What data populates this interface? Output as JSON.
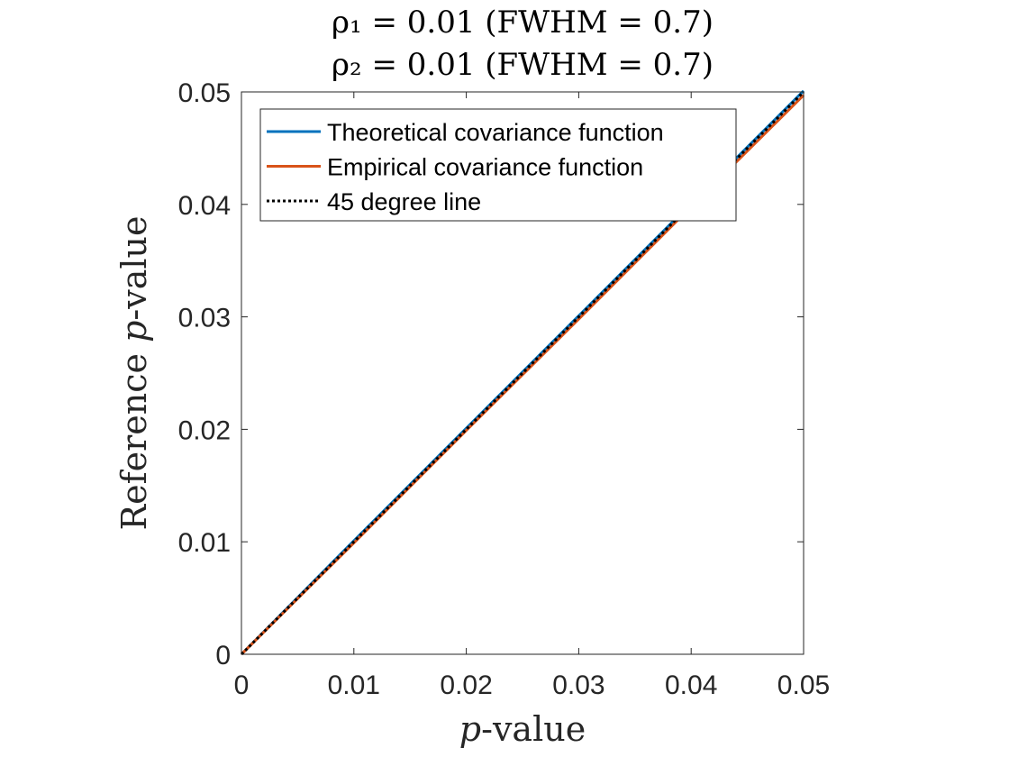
{
  "chart_data": {
    "type": "line",
    "title_lines": [
      "ρ₁ = 0.01 (FWHM = 0.7)",
      "ρ₂ = 0.01 (FWHM = 0.7)"
    ],
    "xlabel": "p-value",
    "ylabel": "Reference p-value",
    "xlim": [
      0,
      0.05
    ],
    "ylim": [
      0,
      0.05
    ],
    "xticks": [
      0,
      0.01,
      0.02,
      0.03,
      0.04,
      0.05
    ],
    "yticks": [
      0,
      0.01,
      0.02,
      0.03,
      0.04,
      0.05
    ],
    "xtick_labels": [
      "0",
      "0.01",
      "0.02",
      "0.03",
      "0.04",
      "0.05"
    ],
    "ytick_labels": [
      "0",
      "0.01",
      "0.02",
      "0.03",
      "0.04",
      "0.05"
    ],
    "grid": false,
    "legend_position": "top-left",
    "series": [
      {
        "name": "Theoretical covariance function",
        "color": "#0072BD",
        "style": "solid",
        "x": [
          0,
          0.01,
          0.02,
          0.03,
          0.04,
          0.05
        ],
        "y": [
          0,
          0.0101,
          0.0201,
          0.0301,
          0.0401,
          0.0501
        ]
      },
      {
        "name": "Empirical covariance function",
        "color": "#D95319",
        "style": "solid",
        "x": [
          0,
          0.01,
          0.02,
          0.03,
          0.04,
          0.05
        ],
        "y": [
          0,
          0.0099,
          0.0199,
          0.0298,
          0.0398,
          0.0497
        ]
      },
      {
        "name": "45 degree line",
        "color": "#000000",
        "style": "dotted",
        "x": [
          0,
          0.05
        ],
        "y": [
          0,
          0.05
        ]
      }
    ]
  }
}
